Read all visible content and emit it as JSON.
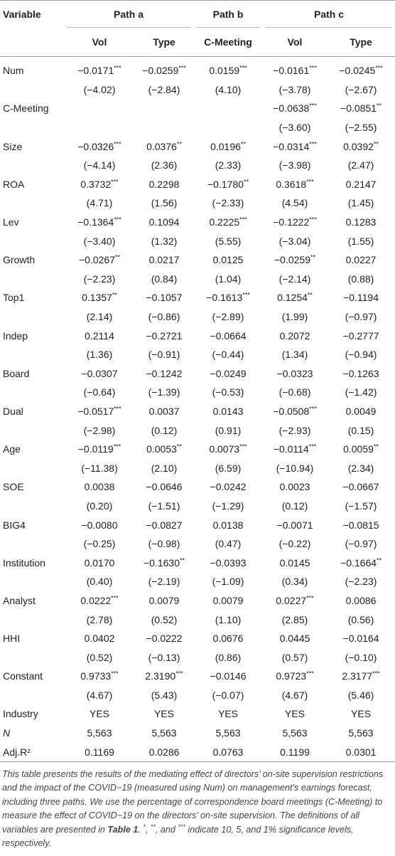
{
  "table": {
    "header": {
      "variable": "Variable",
      "groups": [
        "Path a",
        "Path b",
        "Path c"
      ],
      "columns": [
        "Vol",
        "Type",
        "C-Meeting",
        "Vol",
        "Type"
      ]
    },
    "rows": [
      {
        "label": "Num",
        "values": [
          "−0.0171***",
          "−0.0259***",
          "0.0159***",
          "−0.0161***",
          "−0.0245***"
        ],
        "tstats": [
          "(−4.02)",
          "(−2.84)",
          "(4.10)",
          "(−3.78)",
          "(−2.67)"
        ]
      },
      {
        "label": "C-Meeting",
        "values": [
          null,
          null,
          null,
          "−0.0638***",
          "−0.0851**"
        ],
        "tstats": [
          null,
          null,
          null,
          "(−3.60)",
          "(−2.55)"
        ]
      },
      {
        "label": "Size",
        "values": [
          "−0.0326***",
          "0.0376**",
          "0.0196**",
          "−0.0314***",
          "0.0392**"
        ],
        "tstats": [
          "(−4.14)",
          "(2.36)",
          "(2.33)",
          "(−3.98)",
          "(2.47)"
        ]
      },
      {
        "label": "ROA",
        "values": [
          "0.3732***",
          "0.2298",
          "−0.1780**",
          "0.3618***",
          "0.2147"
        ],
        "tstats": [
          "(4.71)",
          "(1.56)",
          "(−2.33)",
          "(4.54)",
          "(1.45)"
        ]
      },
      {
        "label": "Lev",
        "values": [
          "−0.1364***",
          "0.1094",
          "0.2225***",
          "−0.1222***",
          "0.1283"
        ],
        "tstats": [
          "(−3.40)",
          "(1.32)",
          "(5.55)",
          "(−3.04)",
          "(1.55)"
        ]
      },
      {
        "label": "Growth",
        "values": [
          "−0.0267**",
          "0.0217",
          "0.0125",
          "−0.0259**",
          "0.0227"
        ],
        "tstats": [
          "(−2.23)",
          "(0.84)",
          "(1.04)",
          "(−2.14)",
          "(0.88)"
        ]
      },
      {
        "label": "Top1",
        "values": [
          "0.1357**",
          "−0.1057",
          "−0.1613***",
          "0.1254**",
          "−0.1194"
        ],
        "tstats": [
          "(2.14)",
          "(−0.86)",
          "(−2.89)",
          "(1.99)",
          "(−0.97)"
        ]
      },
      {
        "label": "Indep",
        "values": [
          "0.2114",
          "−0.2721",
          "−0.0664",
          "0.2072",
          "−0.2777"
        ],
        "tstats": [
          "(1.36)",
          "(−0.91)",
          "(−0.44)",
          "(1.34)",
          "(−0.94)"
        ]
      },
      {
        "label": "Board",
        "values": [
          "−0.0307",
          "−0.1242",
          "−0.0249",
          "−0.0323",
          "−0.1263"
        ],
        "tstats": [
          "(−0.64)",
          "(−1.39)",
          "(−0.53)",
          "(−0.68)",
          "(−1.42)"
        ]
      },
      {
        "label": "Dual",
        "values": [
          "−0.0517***",
          "0.0037",
          "0.0143",
          "−0.0508***",
          "0.0049"
        ],
        "tstats": [
          "(−2.98)",
          "(0.12)",
          "(0.91)",
          "(−2.93)",
          "(0.15)"
        ]
      },
      {
        "label": "Age",
        "values": [
          "−0.0119***",
          "0.0053**",
          "0.0073***",
          "−0.0114***",
          "0.0059**"
        ],
        "tstats": [
          "(−11.38)",
          "(2.10)",
          "(6.59)",
          "(−10.94)",
          "(2.34)"
        ]
      },
      {
        "label": "SOE",
        "values": [
          "0.0038",
          "−0.0646",
          "−0.0242",
          "0.0023",
          "−0.0667"
        ],
        "tstats": [
          "(0.20)",
          "(−1.51)",
          "(−1.29)",
          "(0.12)",
          "(−1.57)"
        ]
      },
      {
        "label": "BIG4",
        "values": [
          "−0.0080",
          "−0.0827",
          "0.0138",
          "−0.0071",
          "−0.0815"
        ],
        "tstats": [
          "(−0.25)",
          "(−0.98)",
          "(0.47)",
          "(−0.22)",
          "(−0.97)"
        ]
      },
      {
        "label": "Institution",
        "values": [
          "0.0170",
          "−0.1630**",
          "−0.0393",
          "0.0145",
          "−0.1664**"
        ],
        "tstats": [
          "(0.40)",
          "(−2.19)",
          "(−1.09)",
          "(0.34)",
          "(−2.23)"
        ]
      },
      {
        "label": "Analyst",
        "values": [
          "0.0222***",
          "0.0079",
          "0.0079",
          "0.0227***",
          "0.0086"
        ],
        "tstats": [
          "(2.78)",
          "(0.52)",
          "(1.10)",
          "(2.85)",
          "(0.56)"
        ]
      },
      {
        "label": "HHI",
        "values": [
          "0.0402",
          "−0.0222",
          "0.0676",
          "0.0445",
          "−0.0164"
        ],
        "tstats": [
          "(0.52)",
          "(−0.13)",
          "(0.86)",
          "(0.57)",
          "(−0.10)"
        ]
      },
      {
        "label": "Constant",
        "values": [
          "0.9733***",
          "2.3190***",
          "−0.0146",
          "0.9723***",
          "2.3177***"
        ],
        "tstats": [
          "(4.67)",
          "(5.43)",
          "(−0.07)",
          "(4.67)",
          "(5.46)"
        ]
      },
      {
        "label": "Industry",
        "values": [
          "YES",
          "YES",
          "YES",
          "YES",
          "YES"
        ]
      },
      {
        "label": "N",
        "italic": true,
        "values": [
          "5,563",
          "5,563",
          "5,563",
          "5,563",
          "5,563"
        ]
      },
      {
        "label": "Adj.R²",
        "values": [
          "0.1169",
          "0.0286",
          "0.0763",
          "0.1199",
          "0.0301"
        ]
      }
    ]
  },
  "footnote": [
    "This table presents the results of the mediating effect of directors’ on-site supervision restrictions and the impact of the COVID−19 (measured using Num) on management’s earnings forecast, including three paths. We use the percentage of correspondence board meetings (C-Meeting) to measure the effect of COVID−19 on the directors’ on-site supervision. The definitions of all variables are presented in ",
    "Table 1",
    ". ",
    "*",
    ", ",
    "**",
    ", and ",
    "***",
    " indicate 10, 5, and 1% significance levels, respectively."
  ]
}
